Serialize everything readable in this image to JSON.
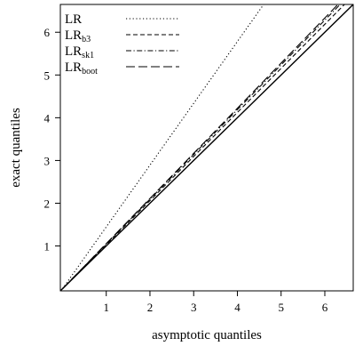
{
  "chart_data": {
    "type": "line",
    "xlabel": "asymptotic quantiles",
    "ylabel": "exact quantiles",
    "xlim": [
      -0.05,
      6.65
    ],
    "ylim": [
      -0.05,
      6.65
    ],
    "xticks": [
      1,
      2,
      3,
      4,
      5,
      6
    ],
    "yticks": [
      1,
      2,
      3,
      4,
      5,
      6
    ],
    "legend_position": "top-left",
    "grid": false,
    "reference_line": {
      "name": "",
      "x": [
        -0.05,
        6.65
      ],
      "y": [
        -0.05,
        6.65
      ],
      "style": "solid"
    },
    "series": [
      {
        "name": "LR",
        "sub": "",
        "style": "dotted",
        "x": [
          0,
          4.6
        ],
        "y": [
          0,
          6.65
        ]
      },
      {
        "name": "LR",
        "sub": "b3",
        "style": "short-dash",
        "x": [
          0,
          6.45
        ],
        "y": [
          0,
          6.65
        ]
      },
      {
        "name": "LR",
        "sub": "sk1",
        "style": "dash-dot",
        "x": [
          0,
          6.35
        ],
        "y": [
          0,
          6.65
        ]
      },
      {
        "name": "LR",
        "sub": "boot",
        "style": "long-dash",
        "x": [
          0,
          6.3
        ],
        "y": [
          0,
          6.65
        ]
      }
    ]
  }
}
